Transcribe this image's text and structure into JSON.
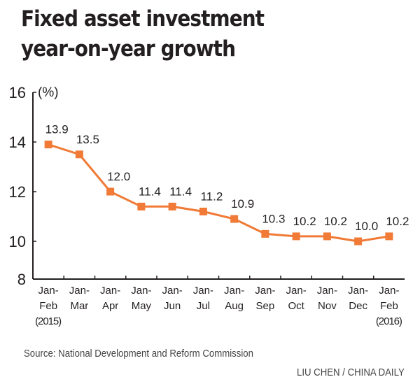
{
  "chart_data": {
    "type": "line",
    "title": "Fixed asset investment year-on-year growth",
    "title_lines": [
      "Fixed asset investment",
      "year-on-year growth"
    ],
    "ylabel": "(%)",
    "ylim": [
      8,
      16
    ],
    "yticks": [
      8,
      10,
      12,
      14,
      16
    ],
    "grid": false,
    "categories": [
      [
        "Jan-",
        "Feb",
        "(2015)"
      ],
      [
        "Jan-",
        "Mar"
      ],
      [
        "Jan-",
        "Apr"
      ],
      [
        "Jan-",
        "May"
      ],
      [
        "Jan-",
        "Jun"
      ],
      [
        "Jan-",
        "Jul"
      ],
      [
        "Jan-",
        "Aug"
      ],
      [
        "Jan-",
        "Sep"
      ],
      [
        "Jan-",
        "Oct"
      ],
      [
        "Jan-",
        "Nov"
      ],
      [
        "Jan-",
        "Dec"
      ],
      [
        "Jan-",
        "Feb",
        "(2016)"
      ]
    ],
    "values": [
      13.9,
      13.5,
      12.0,
      11.4,
      11.4,
      11.2,
      10.9,
      10.3,
      10.2,
      10.2,
      10.0,
      10.2
    ],
    "data_labels": [
      "13.9",
      "13.5",
      "12.0",
      "11.4",
      "11.4",
      "11.2",
      "10.9",
      "10.3",
      "10.2",
      "10.2",
      "10.0",
      "10.2"
    ],
    "color": "#f07a36"
  },
  "source": "Source: National Development and Reform Commission",
  "credit": "LIU CHEN  / CHINA DAILY"
}
